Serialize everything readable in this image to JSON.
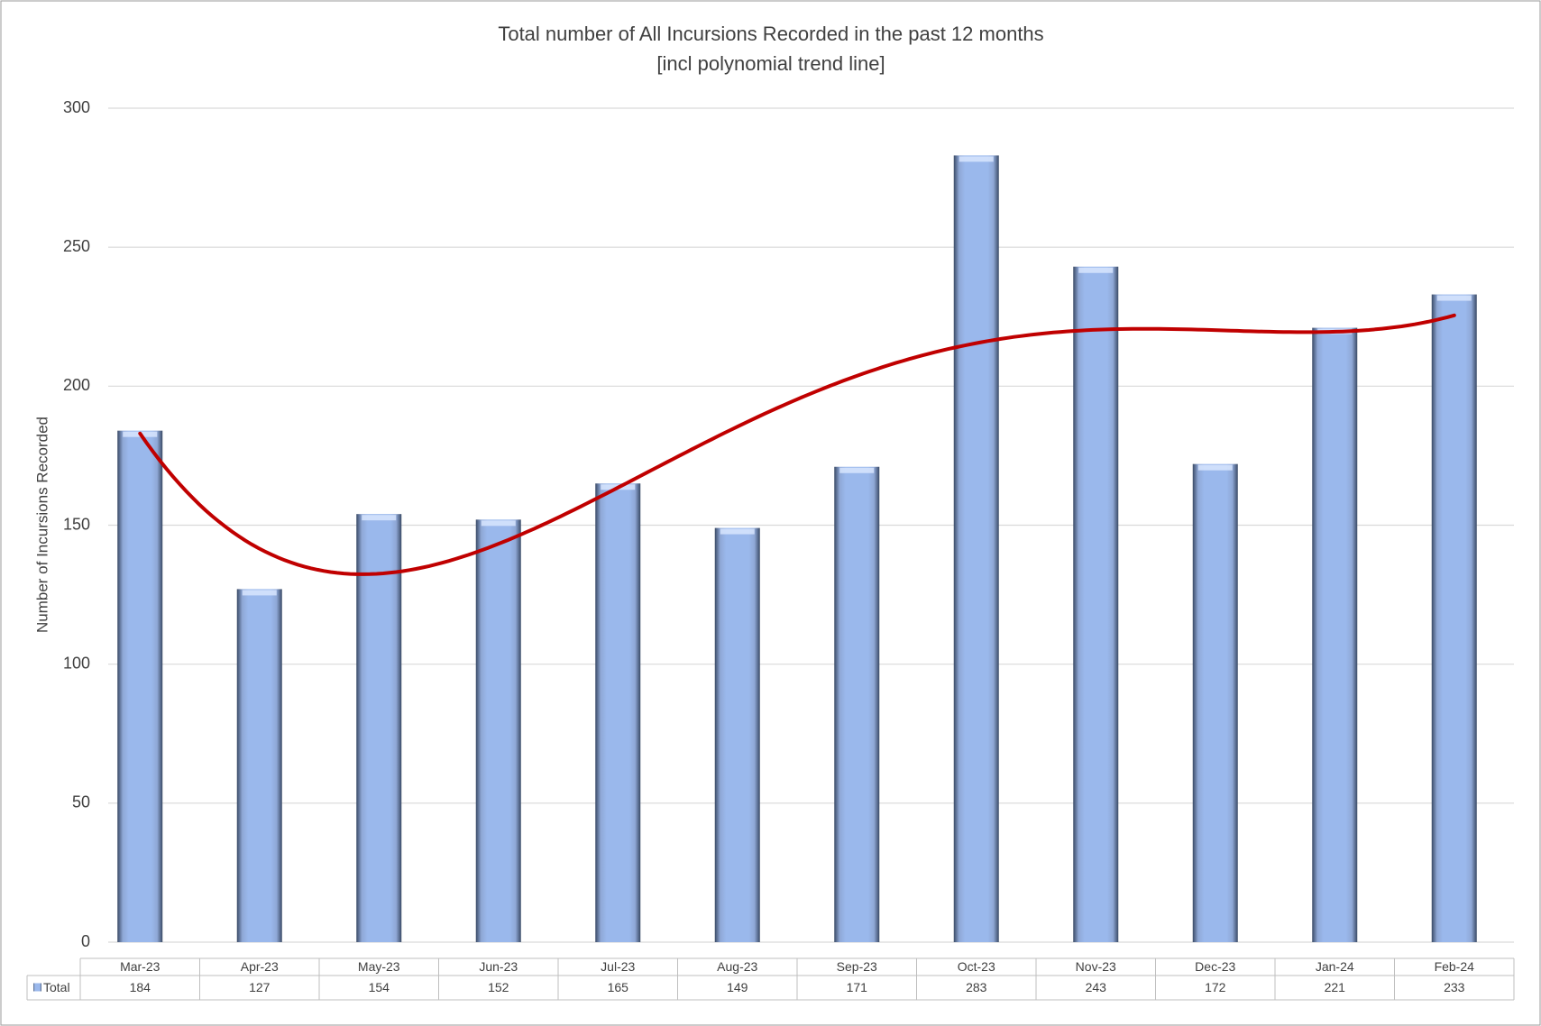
{
  "chart_data": {
    "type": "bar",
    "title": "Total number of All Incursions Recorded in the past 12 months",
    "subtitle": "[incl polynomial trend line]",
    "y_label": "Number of Incursions Recorded",
    "categories": [
      "Mar-23",
      "Apr-23",
      "May-23",
      "Jun-23",
      "Jul-23",
      "Aug-23",
      "Sep-23",
      "Oct-23",
      "Nov-23",
      "Dec-23",
      "Jan-24",
      "Feb-24"
    ],
    "series": [
      {
        "name": "Total",
        "color": "#95b3e8",
        "values": [
          184,
          127,
          154,
          152,
          165,
          149,
          171,
          283,
          243,
          172,
          221,
          233
        ]
      }
    ],
    "ylim": [
      0,
      300
    ],
    "yticks": [
      0,
      50,
      100,
      150,
      200,
      250,
      300
    ],
    "grid": true,
    "data_table": true,
    "trendline": {
      "type": "polynomial",
      "order": 4,
      "color": "#c00000"
    }
  }
}
